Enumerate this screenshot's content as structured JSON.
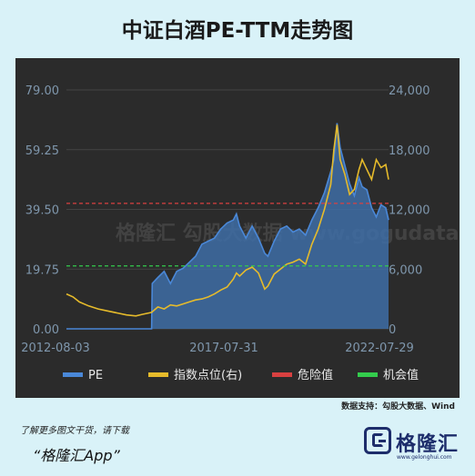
{
  "title": "中证白酒PE-TTM走势图",
  "source": "数据支持：勾股大数据、Wind",
  "footer": {
    "line1": "了解更多图文干货，请下载",
    "line2": "“格隆汇App”"
  },
  "logo": {
    "text": "格隆汇",
    "sub": "www.gelonghui.com"
  },
  "watermark": "格隆汇 勾股大数据 www.gogudata.com",
  "colors": {
    "pe": "#4a88d8",
    "pe_fill": "#3e6da6",
    "index": "#e6bb2b",
    "danger": "#d94040",
    "opportunity": "#33cc4d"
  },
  "chart_data": {
    "type": "line",
    "x_ticks": [
      "2012-08-03",
      "2017-07-31",
      "2022-07-29"
    ],
    "y_left": {
      "ticks": [
        "0.00",
        "19.75",
        "39.50",
        "59.25",
        "79.00"
      ],
      "range": [
        0,
        79
      ]
    },
    "y_right": {
      "ticks": [
        "0",
        "6,000",
        "12,000",
        "18,000",
        "24,000"
      ],
      "range": [
        0,
        24000
      ]
    },
    "legend": [
      {
        "key": "pe",
        "label": "PE"
      },
      {
        "key": "index",
        "label": "指数点位(右)"
      },
      {
        "key": "danger",
        "label": "危险值"
      },
      {
        "key": "opportunity",
        "label": "机会值"
      }
    ],
    "danger_value": 41.5,
    "opportunity_value": 20.8,
    "pe_series": [
      [
        2012.59,
        0
      ],
      [
        2015.0,
        0
      ],
      [
        2015.3,
        0
      ],
      [
        2015.32,
        15
      ],
      [
        2015.5,
        17
      ],
      [
        2015.7,
        19
      ],
      [
        2015.9,
        15
      ],
      [
        2016.1,
        19
      ],
      [
        2016.3,
        20
      ],
      [
        2016.5,
        22
      ],
      [
        2016.7,
        24
      ],
      [
        2016.9,
        28
      ],
      [
        2017.1,
        29
      ],
      [
        2017.3,
        30
      ],
      [
        2017.5,
        33
      ],
      [
        2017.7,
        35
      ],
      [
        2017.9,
        36
      ],
      [
        2018.0,
        38
      ],
      [
        2018.1,
        34
      ],
      [
        2018.3,
        30
      ],
      [
        2018.5,
        34
      ],
      [
        2018.7,
        30
      ],
      [
        2018.9,
        25
      ],
      [
        2019.0,
        24
      ],
      [
        2019.2,
        29
      ],
      [
        2019.4,
        33
      ],
      [
        2019.6,
        34
      ],
      [
        2019.8,
        32
      ],
      [
        2020.0,
        33
      ],
      [
        2020.2,
        31
      ],
      [
        2020.4,
        36
      ],
      [
        2020.6,
        40
      ],
      [
        2020.8,
        45
      ],
      [
        2021.0,
        52
      ],
      [
        2021.1,
        56
      ],
      [
        2021.2,
        68
      ],
      [
        2021.3,
        60
      ],
      [
        2021.45,
        54
      ],
      [
        2021.6,
        48
      ],
      [
        2021.75,
        44
      ],
      [
        2021.9,
        50
      ],
      [
        2022.0,
        47
      ],
      [
        2022.15,
        46
      ],
      [
        2022.3,
        40
      ],
      [
        2022.45,
        37
      ],
      [
        2022.6,
        41
      ],
      [
        2022.75,
        40
      ],
      [
        2022.84,
        36
      ]
    ],
    "index_series": [
      [
        2012.59,
        3500
      ],
      [
        2012.8,
        3200
      ],
      [
        2013.0,
        2700
      ],
      [
        2013.3,
        2300
      ],
      [
        2013.6,
        2000
      ],
      [
        2013.9,
        1800
      ],
      [
        2014.2,
        1600
      ],
      [
        2014.5,
        1400
      ],
      [
        2014.8,
        1300
      ],
      [
        2015.0,
        1450
      ],
      [
        2015.3,
        1650
      ],
      [
        2015.5,
        2200
      ],
      [
        2015.7,
        2000
      ],
      [
        2015.9,
        2400
      ],
      [
        2016.1,
        2300
      ],
      [
        2016.3,
        2500
      ],
      [
        2016.5,
        2700
      ],
      [
        2016.7,
        2900
      ],
      [
        2016.9,
        3000
      ],
      [
        2017.1,
        3200
      ],
      [
        2017.3,
        3500
      ],
      [
        2017.5,
        3900
      ],
      [
        2017.7,
        4200
      ],
      [
        2017.9,
        5000
      ],
      [
        2018.0,
        5600
      ],
      [
        2018.1,
        5300
      ],
      [
        2018.3,
        5900
      ],
      [
        2018.5,
        6200
      ],
      [
        2018.7,
        5600
      ],
      [
        2018.9,
        4000
      ],
      [
        2019.0,
        4300
      ],
      [
        2019.2,
        5500
      ],
      [
        2019.4,
        6000
      ],
      [
        2019.6,
        6500
      ],
      [
        2019.8,
        6700
      ],
      [
        2020.0,
        7000
      ],
      [
        2020.2,
        6500
      ],
      [
        2020.4,
        8500
      ],
      [
        2020.6,
        10000
      ],
      [
        2020.8,
        12000
      ],
      [
        2021.0,
        14500
      ],
      [
        2021.1,
        18000
      ],
      [
        2021.2,
        20500
      ],
      [
        2021.3,
        17000
      ],
      [
        2021.45,
        15500
      ],
      [
        2021.6,
        13500
      ],
      [
        2021.75,
        14000
      ],
      [
        2021.9,
        16000
      ],
      [
        2022.0,
        17000
      ],
      [
        2022.15,
        16000
      ],
      [
        2022.3,
        15000
      ],
      [
        2022.45,
        17000
      ],
      [
        2022.6,
        16200
      ],
      [
        2022.75,
        16500
      ],
      [
        2022.84,
        15000
      ]
    ]
  }
}
